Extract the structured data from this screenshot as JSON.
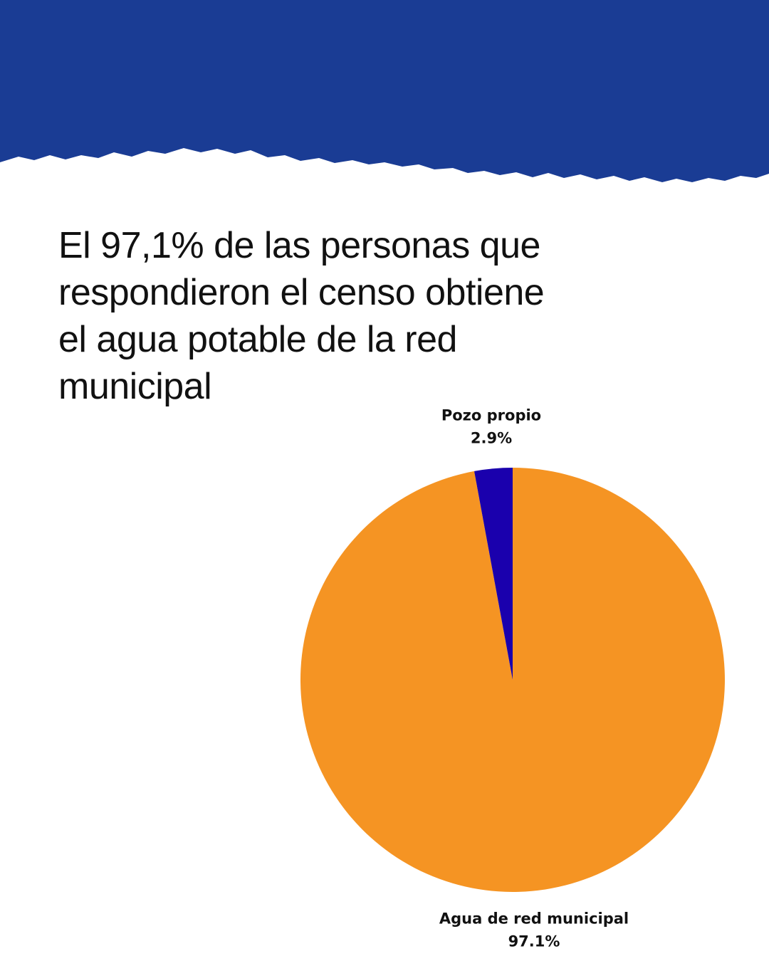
{
  "headline": "El 97,1% de las personas que respondieron el censo obtiene el agua potable de la red municipal",
  "colors": {
    "header": "#1a3c94",
    "background": "#ffffff",
    "text": "#111111"
  },
  "chart_data": {
    "type": "pie",
    "title": "",
    "slices": [
      {
        "label": "Agua de red municipal",
        "value": 97.1,
        "value_label": "97.1%",
        "color": "#f59423"
      },
      {
        "label": "Pozo propio",
        "value": 2.9,
        "value_label": "2.9%",
        "color": "#1a00ad"
      }
    ],
    "start_angle": "top, clockwise from the Agua de red municipal slice"
  }
}
